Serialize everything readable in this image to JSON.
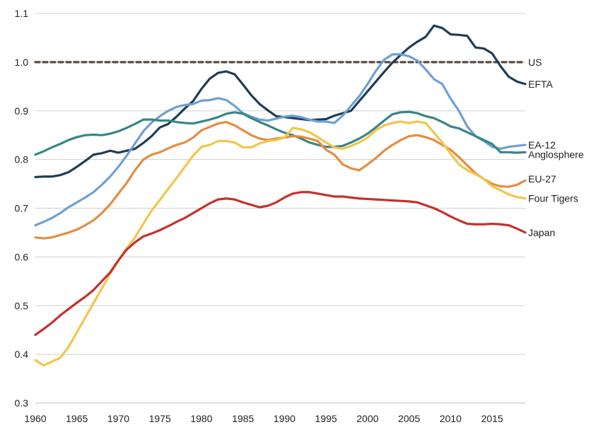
{
  "chart_data": {
    "type": "line",
    "title": "",
    "xlabel": "",
    "ylabel": "",
    "xlim": [
      1960,
      2019
    ],
    "ylim": [
      0.3,
      1.1
    ],
    "grid": true,
    "legend": "none",
    "x_ticks": [
      1960,
      1965,
      1970,
      1975,
      1980,
      1985,
      1990,
      1995,
      2000,
      2005,
      2010,
      2015
    ],
    "y_ticks": [
      0.3,
      0.4,
      0.5,
      0.6,
      0.7,
      0.8,
      0.9,
      1.0,
      1.1
    ],
    "x_tick_labels": [
      "1960",
      "1965",
      "1970",
      "1975",
      "1980",
      "1985",
      "1990",
      "1995",
      "2000",
      "2005",
      "2010",
      "2015"
    ],
    "y_tick_labels": [
      "0.3",
      "0.4",
      "0.5",
      "0.6",
      "0.7",
      "0.8",
      "0.9",
      "1.0",
      "1.1"
    ],
    "x": [
      1960,
      1961,
      1962,
      1963,
      1964,
      1965,
      1966,
      1967,
      1968,
      1969,
      1970,
      1971,
      1972,
      1973,
      1974,
      1975,
      1976,
      1977,
      1978,
      1979,
      1980,
      1981,
      1982,
      1983,
      1984,
      1985,
      1986,
      1987,
      1988,
      1989,
      1990,
      1991,
      1992,
      1993,
      1994,
      1995,
      1996,
      1997,
      1998,
      1999,
      2000,
      2001,
      2002,
      2003,
      2004,
      2005,
      2006,
      2007,
      2008,
      2009,
      2010,
      2011,
      2012,
      2013,
      2014,
      2015,
      2016,
      2017,
      2018,
      2019
    ],
    "series": [
      {
        "name": "US",
        "color": "#5a4a42",
        "dashed": true,
        "values": [
          1.0,
          1.0,
          1.0,
          1.0,
          1.0,
          1.0,
          1.0,
          1.0,
          1.0,
          1.0,
          1.0,
          1.0,
          1.0,
          1.0,
          1.0,
          1.0,
          1.0,
          1.0,
          1.0,
          1.0,
          1.0,
          1.0,
          1.0,
          1.0,
          1.0,
          1.0,
          1.0,
          1.0,
          1.0,
          1.0,
          1.0,
          1.0,
          1.0,
          1.0,
          1.0,
          1.0,
          1.0,
          1.0,
          1.0,
          1.0,
          1.0,
          1.0,
          1.0,
          1.0,
          1.0,
          1.0,
          1.0,
          1.0,
          1.0,
          1.0,
          1.0,
          1.0,
          1.0,
          1.0,
          1.0,
          1.0,
          1.0,
          1.0,
          1.0,
          1.0
        ]
      },
      {
        "name": "EFTA",
        "color": "#1f3d55",
        "values": [
          0.764,
          0.765,
          0.765,
          0.768,
          0.774,
          0.785,
          0.797,
          0.81,
          0.813,
          0.818,
          0.814,
          0.818,
          0.822,
          0.834,
          0.848,
          0.866,
          0.873,
          0.888,
          0.905,
          0.92,
          0.945,
          0.966,
          0.978,
          0.981,
          0.975,
          0.954,
          0.932,
          0.914,
          0.901,
          0.889,
          0.887,
          0.885,
          0.883,
          0.881,
          0.882,
          0.883,
          0.89,
          0.895,
          0.9,
          0.92,
          0.94,
          0.96,
          0.98,
          0.999,
          1.015,
          1.03,
          1.042,
          1.052,
          1.075,
          1.07,
          1.057,
          1.056,
          1.054,
          1.03,
          1.028,
          1.018,
          0.992,
          0.97,
          0.96,
          0.955
        ]
      },
      {
        "name": "EA-12",
        "color": "#6f9fd6",
        "values": [
          0.665,
          0.672,
          0.68,
          0.69,
          0.702,
          0.712,
          0.722,
          0.733,
          0.748,
          0.765,
          0.785,
          0.808,
          0.833,
          0.858,
          0.876,
          0.889,
          0.9,
          0.908,
          0.912,
          0.914,
          0.921,
          0.922,
          0.926,
          0.922,
          0.91,
          0.895,
          0.888,
          0.882,
          0.88,
          0.884,
          0.888,
          0.89,
          0.887,
          0.882,
          0.878,
          0.878,
          0.875,
          0.89,
          0.91,
          0.93,
          0.955,
          0.982,
          1.005,
          1.016,
          1.016,
          1.012,
          1.003,
          0.985,
          0.965,
          0.955,
          0.925,
          0.9,
          0.868,
          0.848,
          0.838,
          0.826,
          0.822,
          0.826,
          0.828,
          0.83
        ]
      },
      {
        "name": "Anglosphere",
        "color": "#3a8585",
        "values": [
          0.81,
          0.817,
          0.825,
          0.832,
          0.84,
          0.846,
          0.85,
          0.851,
          0.85,
          0.853,
          0.858,
          0.865,
          0.873,
          0.882,
          0.882,
          0.88,
          0.88,
          0.877,
          0.875,
          0.874,
          0.878,
          0.882,
          0.887,
          0.894,
          0.897,
          0.894,
          0.885,
          0.877,
          0.87,
          0.862,
          0.855,
          0.85,
          0.843,
          0.835,
          0.83,
          0.826,
          0.826,
          0.828,
          0.835,
          0.843,
          0.853,
          0.866,
          0.88,
          0.893,
          0.897,
          0.898,
          0.895,
          0.889,
          0.885,
          0.877,
          0.868,
          0.864,
          0.856,
          0.848,
          0.84,
          0.832,
          0.815,
          0.815,
          0.814,
          0.815
        ]
      },
      {
        "name": "EU-27",
        "color": "#e58c42",
        "values": [
          0.64,
          0.638,
          0.64,
          0.645,
          0.65,
          0.656,
          0.665,
          0.675,
          0.69,
          0.708,
          0.73,
          0.752,
          0.778,
          0.8,
          0.81,
          0.815,
          0.823,
          0.83,
          0.835,
          0.845,
          0.86,
          0.867,
          0.874,
          0.877,
          0.87,
          0.86,
          0.85,
          0.843,
          0.84,
          0.843,
          0.845,
          0.848,
          0.847,
          0.843,
          0.838,
          0.82,
          0.81,
          0.79,
          0.782,
          0.778,
          0.79,
          0.803,
          0.818,
          0.83,
          0.84,
          0.848,
          0.85,
          0.846,
          0.84,
          0.83,
          0.82,
          0.805,
          0.788,
          0.772,
          0.76,
          0.75,
          0.745,
          0.744,
          0.748,
          0.757
        ]
      },
      {
        "name": "Four Tigers",
        "color": "#f2c54b",
        "values": [
          0.388,
          0.377,
          0.385,
          0.393,
          0.415,
          0.445,
          0.475,
          0.505,
          0.535,
          0.565,
          0.592,
          0.618,
          0.64,
          0.668,
          0.695,
          0.717,
          0.74,
          0.762,
          0.785,
          0.808,
          0.826,
          0.83,
          0.838,
          0.838,
          0.835,
          0.825,
          0.825,
          0.833,
          0.838,
          0.84,
          0.845,
          0.865,
          0.862,
          0.856,
          0.846,
          0.835,
          0.825,
          0.822,
          0.828,
          0.835,
          0.845,
          0.86,
          0.87,
          0.875,
          0.878,
          0.875,
          0.878,
          0.875,
          0.855,
          0.835,
          0.812,
          0.79,
          0.778,
          0.77,
          0.76,
          0.745,
          0.737,
          0.728,
          0.723,
          0.72
        ]
      },
      {
        "name": "Japan",
        "color": "#c6302c",
        "values": [
          0.44,
          0.452,
          0.465,
          0.48,
          0.493,
          0.506,
          0.518,
          0.532,
          0.55,
          0.568,
          0.593,
          0.615,
          0.63,
          0.642,
          0.648,
          0.655,
          0.663,
          0.672,
          0.68,
          0.69,
          0.7,
          0.71,
          0.718,
          0.72,
          0.718,
          0.712,
          0.707,
          0.702,
          0.705,
          0.712,
          0.722,
          0.73,
          0.733,
          0.733,
          0.73,
          0.727,
          0.724,
          0.724,
          0.722,
          0.72,
          0.719,
          0.718,
          0.717,
          0.716,
          0.715,
          0.714,
          0.712,
          0.706,
          0.7,
          0.692,
          0.683,
          0.675,
          0.668,
          0.667,
          0.667,
          0.668,
          0.667,
          0.665,
          0.658,
          0.65
        ]
      }
    ],
    "labels": [
      {
        "series": "US",
        "text": "US",
        "y": 1.0
      },
      {
        "series": "EFTA",
        "text": "EFTA",
        "y": 0.955
      },
      {
        "series": "EA-12",
        "text": "EA-12",
        "y": 0.83
      },
      {
        "series": "Anglosphere",
        "text": "Anglosphere",
        "y": 0.81
      },
      {
        "series": "EU-27",
        "text": "EU-27",
        "y": 0.76
      },
      {
        "series": "Four Tigers",
        "text": "Four Tigers",
        "y": 0.72
      },
      {
        "series": "Japan",
        "text": "Japan",
        "y": 0.65
      }
    ]
  }
}
